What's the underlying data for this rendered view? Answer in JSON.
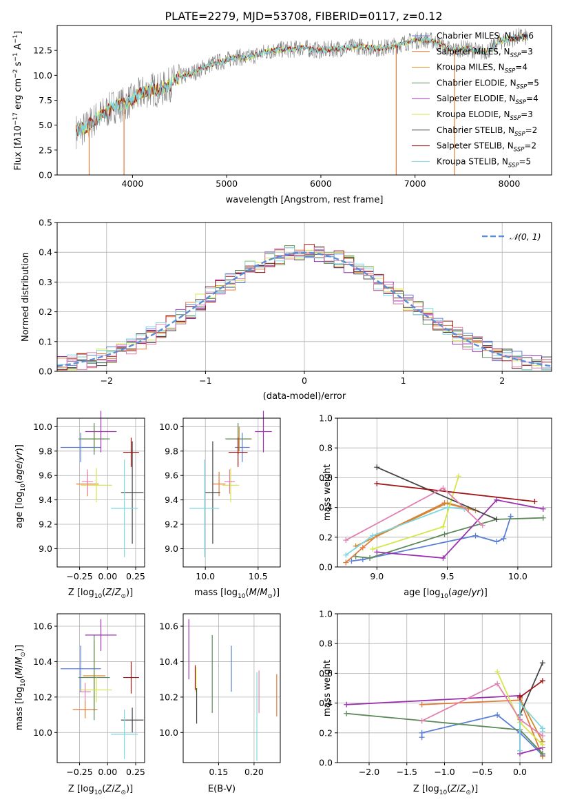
{
  "colors": {
    "Chabrier MILES": "#5a7fd6",
    "Salpeter MILES": "#e07b39",
    "Kroupa MILES": "#d08a2a",
    "Chabrier ELODIE": "#5c8a5a",
    "Salpeter ELODIE": "#9a30b0",
    "Kroupa ELODIE": "#d6e64a",
    "Chabrier STELIB": "#444444",
    "Salpeter STELIB": "#a01515",
    "Kroupa STELIB": "#7fd6e0",
    "pink": "#e080b0",
    "gauss": "#5b8dd6"
  },
  "chart_data": [
    {
      "type": "line",
      "id": "spectrum",
      "title": "PLATE=2279, MJD=53708, FIBERID=0117, z=0.12",
      "xlabel": "wavelength [Angstrom, rest frame]",
      "ylabel": "Flux [f_λ 10^-17 erg cm^-2 s^-1 A^-1]",
      "xlim": [
        3200,
        8450
      ],
      "ylim": [
        0,
        15
      ],
      "xticks": [
        "4000",
        "5000",
        "6000",
        "7000",
        "8000"
      ],
      "yticks": [
        "0.0",
        "2.5",
        "5.0",
        "7.5",
        "10.0",
        "12.5"
      ],
      "legend_position": "top-right",
      "legend": [
        "Chabrier MILES, N_SSP=6",
        "Salpeter MILES, N_SSP=3",
        "Kroupa MILES, N_SSP=4",
        "Chabrier ELODIE, N_SSP=5",
        "Salpeter ELODIE, N_SSP=4",
        "Kroupa ELODIE, N_SSP=3",
        "Chabrier STELIB, N_SSP=2",
        "Salpeter STELIB, N_SSP=2",
        "Kroupa STELIB, N_SSP=5"
      ],
      "continuum": [
        [
          3400,
          4.4
        ],
        [
          3500,
          4.7
        ],
        [
          3600,
          5.6
        ],
        [
          3700,
          6.2
        ],
        [
          3800,
          6.9
        ],
        [
          3900,
          7.1
        ],
        [
          4000,
          7.5
        ],
        [
          4100,
          8.2
        ],
        [
          4200,
          8.6
        ],
        [
          4300,
          8.5
        ],
        [
          4400,
          9.1
        ],
        [
          4500,
          9.8
        ],
        [
          4600,
          10.1
        ],
        [
          4700,
          10.5
        ],
        [
          4800,
          11.0
        ],
        [
          4900,
          11.3
        ],
        [
          5000,
          11.5
        ],
        [
          5100,
          11.9
        ],
        [
          5200,
          11.7
        ],
        [
          5300,
          12.0
        ],
        [
          5400,
          12.3
        ],
        [
          5500,
          12.5
        ],
        [
          5600,
          12.6
        ],
        [
          5700,
          12.6
        ],
        [
          5800,
          12.8
        ],
        [
          5900,
          12.6
        ],
        [
          6000,
          12.5
        ],
        [
          6100,
          12.6
        ],
        [
          6200,
          12.7
        ],
        [
          6300,
          12.8
        ],
        [
          6400,
          12.9
        ],
        [
          6500,
          12.8
        ],
        [
          6600,
          12.7
        ],
        [
          6700,
          12.8
        ],
        [
          6800,
          13.0
        ],
        [
          6900,
          13.3
        ],
        [
          7000,
          13.5
        ],
        [
          7100,
          13.6
        ],
        [
          7200,
          13.4
        ],
        [
          7300,
          12.9
        ],
        [
          7400,
          12.5
        ],
        [
          7500,
          12.7
        ],
        [
          7600,
          12.6
        ],
        [
          7700,
          12.3
        ],
        [
          7800,
          12.6
        ],
        [
          7900,
          13.4
        ],
        [
          8000,
          13.6
        ],
        [
          8100,
          13.9
        ],
        [
          8200,
          13.8
        ]
      ],
      "spikes": [
        [
          3540,
          -0.2
        ],
        [
          3910,
          -0.2
        ],
        [
          6800,
          -0.2
        ],
        [
          7420,
          -0.2
        ]
      ]
    },
    {
      "type": "line",
      "id": "residuals",
      "xlabel": "(data-model)/error",
      "ylabel": "Normed distribution",
      "xlim": [
        -2.5,
        2.5
      ],
      "ylim": [
        0,
        0.5
      ],
      "xticks": [
        "−2",
        "−1",
        "0",
        "1",
        "2"
      ],
      "yticks": [
        "0.0",
        "0.1",
        "0.2",
        "0.3",
        "0.4",
        "0.5"
      ],
      "legend": [
        "𝒩(0, 1)"
      ],
      "legend_position": "top-right"
    },
    {
      "type": "scatter",
      "id": "age_vs_Z",
      "xlabel": "Z [log10(Z/Z⊙)]",
      "ylabel": "age [log10(age/yr)]",
      "xlim": [
        -0.45,
        0.33
      ],
      "ylim": [
        8.85,
        10.07
      ],
      "xticks": [
        "−0.25",
        "0.00",
        "0.25"
      ],
      "xtickvals": [
        -0.25,
        0,
        0.25
      ],
      "yticks": [
        "9.0",
        "9.2",
        "9.4",
        "9.6",
        "9.8",
        "10.0"
      ],
      "points": [
        {
          "c": "Chabrier MILES",
          "x": -0.24,
          "xe": 0.18,
          "y": 9.83,
          "ye": 0.12
        },
        {
          "c": "Salpeter MILES",
          "x": -0.18,
          "xe": 0.1,
          "y": 9.53,
          "ye": 0.1
        },
        {
          "c": "Kroupa MILES",
          "x": -0.12,
          "xe": 0.1,
          "y": 9.9,
          "ye": 0.1
        },
        {
          "c": "Chabrier ELODIE",
          "x": -0.12,
          "xe": 0.14,
          "y": 9.9,
          "ye": 0.13
        },
        {
          "c": "Salpeter ELODIE",
          "x": -0.06,
          "xe": 0.14,
          "y": 9.96,
          "ye": 0.17
        },
        {
          "c": "Kroupa ELODIE",
          "x": -0.1,
          "xe": 0.14,
          "y": 9.52,
          "ye": 0.14
        },
        {
          "c": "pink",
          "x": -0.18,
          "xe": 0.05,
          "y": 9.55,
          "ye": 0.1
        },
        {
          "c": "Chabrier STELIB",
          "x": 0.22,
          "xe": 0.1,
          "y": 9.46,
          "ye": 0.42
        },
        {
          "c": "Salpeter STELIB",
          "x": 0.21,
          "xe": 0.07,
          "y": 9.79,
          "ye": 0.12
        },
        {
          "c": "Kroupa STELIB",
          "x": 0.15,
          "xe": 0.12,
          "y": 9.33,
          "ye": 0.4
        }
      ]
    },
    {
      "type": "scatter",
      "id": "age_vs_mass",
      "xlabel": "mass [log10(M/M⊙)]",
      "ylabel": "",
      "xlim": [
        9.79,
        10.71
      ],
      "ylim": [
        8.85,
        10.07
      ],
      "xticks": [
        "10.0",
        "10.5"
      ],
      "xtickvals": [
        10.0,
        10.5
      ],
      "yticks": [
        "9.0",
        "9.2",
        "9.4",
        "9.6",
        "9.8",
        "10.0"
      ],
      "points": [
        {
          "c": "Chabrier MILES",
          "x": 10.35,
          "xe": 0.07,
          "y": 9.83,
          "ye": 0.12
        },
        {
          "c": "Salpeter MILES",
          "x": 10.13,
          "xe": 0.06,
          "y": 9.53,
          "ye": 0.1
        },
        {
          "c": "Kroupa MILES",
          "x": 10.32,
          "xe": 0.12,
          "y": 9.9,
          "ye": 0.1
        },
        {
          "c": "Chabrier ELODIE",
          "x": 10.31,
          "xe": 0.12,
          "y": 9.9,
          "ye": 0.13
        },
        {
          "c": "Salpeter ELODIE",
          "x": 10.55,
          "xe": 0.08,
          "y": 9.96,
          "ye": 0.17
        },
        {
          "c": "Kroupa ELODIE",
          "x": 10.24,
          "xe": 0.08,
          "y": 9.52,
          "ye": 0.14
        },
        {
          "c": "pink",
          "x": 10.23,
          "xe": 0.05,
          "y": 9.55,
          "ye": 0.1
        },
        {
          "c": "Chabrier STELIB",
          "x": 10.07,
          "xe": 0.07,
          "y": 9.46,
          "ye": 0.42
        },
        {
          "c": "Salpeter STELIB",
          "x": 10.31,
          "xe": 0.09,
          "y": 9.79,
          "ye": 0.12
        },
        {
          "c": "Kroupa STELIB",
          "x": 9.99,
          "xe": 0.14,
          "y": 9.33,
          "ye": 0.4
        }
      ]
    },
    {
      "type": "line",
      "id": "mass_weight_vs_age",
      "xlabel": "age [log10(age/yr)]",
      "ylabel": "mass weight",
      "xlim": [
        8.72,
        10.24
      ],
      "ylim": [
        0,
        1
      ],
      "xticks": [
        "9.0",
        "9.5",
        "10.0"
      ],
      "xtickvals": [
        9.0,
        9.5,
        10.0
      ],
      "yticks": [
        "0.0",
        "0.2",
        "0.4",
        "0.6",
        "0.8",
        "1.0"
      ],
      "series": [
        {
          "c": "Chabrier MILES",
          "pts": [
            [
              8.82,
              0.04
            ],
            [
              8.9,
              0.05
            ],
            [
              9.7,
              0.21
            ],
            [
              9.85,
              0.17
            ],
            [
              9.9,
              0.19
            ],
            [
              9.95,
              0.34
            ]
          ]
        },
        {
          "c": "Salpeter MILES",
          "pts": [
            [
              8.78,
              0.03
            ],
            [
              8.9,
              0.13
            ],
            [
              9.0,
              0.21
            ],
            [
              9.48,
              0.43
            ],
            [
              9.65,
              0.39
            ]
          ]
        },
        {
          "c": "Kroupa MILES",
          "pts": [
            [
              8.85,
              0.14
            ],
            [
              9.5,
              0.43
            ],
            [
              9.7,
              0.38
            ]
          ]
        },
        {
          "c": "Chabrier ELODIE",
          "pts": [
            [
              8.85,
              0.07
            ],
            [
              8.95,
              0.06
            ],
            [
              9.48,
              0.22
            ],
            [
              9.85,
              0.32
            ],
            [
              10.18,
              0.33
            ]
          ]
        },
        {
          "c": "Salpeter ELODIE",
          "pts": [
            [
              9.0,
              0.1
            ],
            [
              9.47,
              0.06
            ],
            [
              9.85,
              0.45
            ],
            [
              10.18,
              0.39
            ]
          ]
        },
        {
          "c": "Kroupa ELODIE",
          "pts": [
            [
              8.97,
              0.12
            ],
            [
              9.47,
              0.27
            ],
            [
              9.58,
              0.61
            ]
          ]
        },
        {
          "c": "Chabrier STELIB",
          "pts": [
            [
              9.0,
              0.67
            ],
            [
              9.85,
              0.32
            ]
          ]
        },
        {
          "c": "Salpeter STELIB",
          "pts": [
            [
              9.0,
              0.56
            ],
            [
              10.12,
              0.44
            ]
          ]
        },
        {
          "c": "Kroupa STELIB",
          "pts": [
            [
              8.78,
              0.08
            ],
            [
              8.97,
              0.21
            ],
            [
              9.5,
              0.4
            ],
            [
              9.62,
              0.39
            ]
          ]
        },
        {
          "c": "pink",
          "pts": [
            [
              8.78,
              0.18
            ],
            [
              9.47,
              0.53
            ],
            [
              9.75,
              0.28
            ]
          ]
        }
      ]
    },
    {
      "type": "scatter",
      "id": "mass_vs_Z",
      "xlabel": "Z [log10(Z/Z⊙)]",
      "ylabel": "mass [log10(M/M⊙)]",
      "xlim": [
        -0.45,
        0.33
      ],
      "ylim": [
        9.83,
        10.67
      ],
      "xticks": [
        "−0.25",
        "0.00",
        "0.25"
      ],
      "xtickvals": [
        -0.25,
        0,
        0.25
      ],
      "yticks": [
        "10.0",
        "10.2",
        "10.4",
        "10.6"
      ],
      "points": [
        {
          "c": "Chabrier MILES",
          "x": -0.24,
          "xe": 0.18,
          "y": 10.36,
          "ye": 0.13
        },
        {
          "c": "Salpeter MILES",
          "x": -0.2,
          "xe": 0.11,
          "y": 10.13,
          "ye": 0.05
        },
        {
          "c": "Kroupa MILES",
          "x": -0.12,
          "xe": 0.1,
          "y": 10.32,
          "ye": 0.2
        },
        {
          "c": "Chabrier ELODIE",
          "x": -0.12,
          "xe": 0.14,
          "y": 10.31,
          "ye": 0.24
        },
        {
          "c": "Salpeter ELODIE",
          "x": -0.06,
          "xe": 0.14,
          "y": 10.55,
          "ye": 0.09
        },
        {
          "c": "Kroupa ELODIE",
          "x": -0.1,
          "xe": 0.14,
          "y": 10.24,
          "ye": 0.07
        },
        {
          "c": "pink",
          "x": -0.2,
          "xe": 0.05,
          "y": 10.23,
          "ye": 0.05
        },
        {
          "c": "Chabrier STELIB",
          "x": 0.22,
          "xe": 0.1,
          "y": 10.07,
          "ye": 0.07
        },
        {
          "c": "Salpeter STELIB",
          "x": 0.21,
          "xe": 0.07,
          "y": 10.31,
          "ye": 0.09
        },
        {
          "c": "Kroupa STELIB",
          "x": 0.15,
          "xe": 0.12,
          "y": 9.99,
          "ye": 0.14
        }
      ]
    },
    {
      "type": "scatter",
      "id": "mass_vs_ebv",
      "xlabel": "E(B-V)",
      "ylabel": "",
      "xlim": [
        0.1,
        0.237
      ],
      "ylim": [
        9.83,
        10.67
      ],
      "xticks": [
        "0.15",
        "0.20"
      ],
      "xtickvals": [
        0.15,
        0.2
      ],
      "yticks": [
        "10.0",
        "10.2",
        "10.4",
        "10.6"
      ],
      "points": [
        {
          "c": "Salpeter ELODIE",
          "x": 0.108,
          "y": 10.47,
          "ye": 0.17
        },
        {
          "c": "Kroupa ELODIE",
          "x": 0.118,
          "y": 10.3,
          "ye": 0.07
        },
        {
          "c": "Salpeter STELIB",
          "x": 0.117,
          "y": 10.31,
          "ye": 0.07
        },
        {
          "c": "Chabrier STELIB",
          "x": 0.119,
          "y": 10.15,
          "ye": 0.1
        },
        {
          "c": "Chabrier ELODIE",
          "x": 0.141,
          "y": 10.33,
          "ye": 0.22
        },
        {
          "c": "Chabrier MILES",
          "x": 0.168,
          "y": 10.36,
          "ye": 0.13
        },
        {
          "c": "pink",
          "x": 0.207,
          "y": 10.23,
          "ye": 0.12
        },
        {
          "c": "Kroupa STELIB",
          "x": 0.204,
          "y": 10.09,
          "ye": 0.25
        },
        {
          "c": "Salpeter MILES",
          "x": 0.232,
          "y": 10.21,
          "ye": 0.12
        }
      ]
    },
    {
      "type": "line",
      "id": "mass_weight_vs_Z",
      "xlabel": "Z [log10(Z/Z⊙)]",
      "ylabel": "mass weight",
      "xlim": [
        -2.42,
        0.42
      ],
      "ylim": [
        0,
        1
      ],
      "xticks": [
        "−2.0",
        "−1.5",
        "−1.0",
        "−0.5",
        "0.0"
      ],
      "xtickvals": [
        -2,
        -1.5,
        -1,
        -0.5,
        0
      ],
      "yticks": [
        "0.0",
        "0.2",
        "0.4",
        "0.6",
        "0.8",
        "1.0"
      ],
      "series": [
        {
          "c": "Chabrier MILES",
          "pts": [
            [
              -1.3,
              0.17
            ],
            [
              -1.3,
              0.2
            ],
            [
              -0.3,
              0.32
            ],
            [
              0.0,
              0.2
            ],
            [
              0.3,
              0.05
            ]
          ]
        },
        {
          "c": "Salpeter MILES",
          "pts": [
            [
              -1.3,
              0.39
            ],
            [
              0.0,
              0.42
            ],
            [
              0.3,
              0.04
            ]
          ]
        },
        {
          "c": "Kroupa MILES",
          "pts": [
            [
              0.0,
              0.43
            ],
            [
              0.3,
              0.14
            ]
          ]
        },
        {
          "c": "Chabrier ELODIE",
          "pts": [
            [
              -2.3,
              0.33
            ],
            [
              0.0,
              0.22
            ],
            [
              0.3,
              0.06
            ]
          ]
        },
        {
          "c": "Salpeter ELODIE",
          "pts": [
            [
              -2.3,
              0.39
            ],
            [
              0.0,
              0.45
            ],
            [
              0.0,
              0.06
            ],
            [
              0.3,
              0.1
            ]
          ]
        },
        {
          "c": "Kroupa ELODIE",
          "pts": [
            [
              -0.3,
              0.61
            ],
            [
              0.0,
              0.27
            ],
            [
              0.3,
              0.12
            ]
          ]
        },
        {
          "c": "Chabrier STELIB",
          "pts": [
            [
              0.0,
              0.32
            ],
            [
              0.3,
              0.67
            ]
          ]
        },
        {
          "c": "Salpeter STELIB",
          "pts": [
            [
              0.0,
              0.44
            ],
            [
              0.3,
              0.55
            ]
          ]
        },
        {
          "c": "Kroupa STELIB",
          "pts": [
            [
              0.0,
              0.08
            ],
            [
              0.0,
              0.4
            ],
            [
              0.3,
              0.23
            ],
            [
              0.3,
              0.21
            ]
          ]
        },
        {
          "c": "pink",
          "pts": [
            [
              -1.3,
              0.28
            ],
            [
              -0.3,
              0.53
            ],
            [
              0.0,
              0.29
            ],
            [
              0.3,
              0.18
            ]
          ]
        }
      ]
    }
  ]
}
